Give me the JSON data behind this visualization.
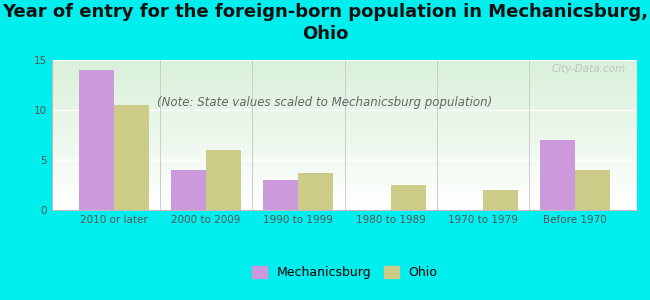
{
  "title": "Year of entry for the foreign-born population in Mechanicsburg,\nOhio",
  "subtitle": "(Note: State values scaled to Mechanicsburg population)",
  "categories": [
    "2010 or later",
    "2000 to 2009",
    "1990 to 1999",
    "1980 to 1989",
    "1970 to 1979",
    "Before 1970"
  ],
  "mechanicsburg_values": [
    14.0,
    4.0,
    3.0,
    0.0,
    0.0,
    7.0
  ],
  "ohio_values": [
    10.5,
    6.0,
    3.7,
    2.5,
    2.0,
    4.0
  ],
  "mechanicsburg_color": "#cc99dd",
  "ohio_color": "#cccc88",
  "background_color": "#00eeee",
  "ylim": [
    0,
    15
  ],
  "yticks": [
    0,
    5,
    10,
    15
  ],
  "bar_width": 0.38,
  "legend_labels": [
    "Mechanicsburg",
    "Ohio"
  ],
  "watermark": "City-Data.com",
  "title_fontsize": 13,
  "subtitle_fontsize": 8.5,
  "tick_fontsize": 7.5
}
